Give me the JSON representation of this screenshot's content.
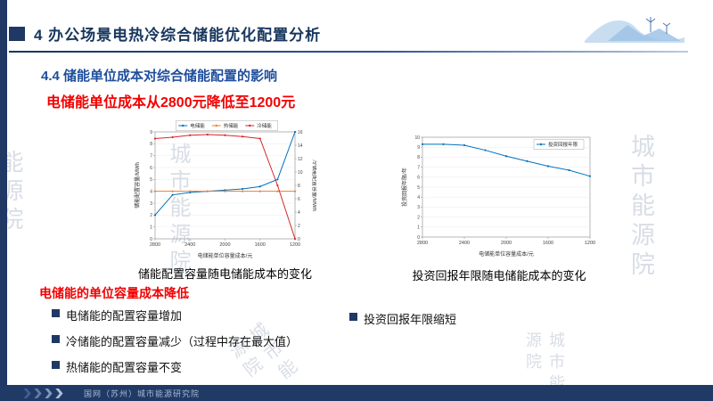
{
  "slide": {
    "title": "4 办公场景电热冷综合储能优化配置分析",
    "section_title": "4.4 储能单位成本对综合储能配置的影响",
    "highlight": "电储能单位成本从2800元降低至1200元"
  },
  "captions": {
    "left": "储能配置容量随电储能成本的变化",
    "right": "投资回报年限随电储能成本的变化"
  },
  "findings": {
    "heading": "电储能的单位容量成本降低",
    "left_bullets": [
      "电储能的配置容量增加",
      "冷储能的配置容量减少（过程中存在最大值）",
      "热储能的配置容量不变"
    ],
    "right_bullets": [
      "投资回报年限缩短"
    ]
  },
  "footer": {
    "org": "国网（苏州）城市能源研究院"
  },
  "watermark": {
    "text": "城市能源院",
    "short": "能源院"
  },
  "colors": {
    "primary_navy": "#1f3864",
    "accent_blue": "#2f5496",
    "highlight_red": "#f20000",
    "line_blue": "#0072bd",
    "line_orange": "#ed7d31",
    "line_red": "#d62728"
  },
  "chart_data": [
    {
      "type": "line",
      "name": "storage-capacity-vs-cost",
      "x": [
        2800,
        2600,
        2400,
        2200,
        2000,
        1800,
        1600,
        1400,
        1200
      ],
      "xticks": [
        2800,
        2400,
        2000,
        1600,
        1200
      ],
      "xlabel": "电储能单位容量成本/元",
      "ylabel_left": "储能配置容量/MWh",
      "ylabel_right": "冷储能配置容量/MWh",
      "ylim_left": [
        0,
        9
      ],
      "ytick_left": 1,
      "ylim_right": [
        0,
        16
      ],
      "ytick_right": 2,
      "legend": "top",
      "series": [
        {
          "name": "电储能",
          "axis": "left",
          "color": "#0072bd",
          "values": [
            2.0,
            3.7,
            3.9,
            4.0,
            4.1,
            4.2,
            4.4,
            5.0,
            9.0
          ]
        },
        {
          "name": "热储能",
          "axis": "left",
          "color": "#ed7d31",
          "values": [
            4.0,
            4.0,
            4.0,
            4.0,
            4.0,
            4.0,
            4.0,
            4.0,
            4.0
          ]
        },
        {
          "name": "冷储能",
          "axis": "right",
          "color": "#d62728",
          "values": [
            15.0,
            15.2,
            15.5,
            15.6,
            15.5,
            15.3,
            15.0,
            8.0,
            0.0
          ]
        }
      ]
    },
    {
      "type": "line",
      "name": "payback-vs-cost",
      "x": [
        2800,
        2600,
        2400,
        2200,
        2000,
        1800,
        1600,
        1400,
        1200
      ],
      "xticks": [
        2800,
        2400,
        2000,
        1600,
        1200
      ],
      "xlabel": "电储能单位容量成本/元",
      "ylabel_left": "投资回报年限/年",
      "ylim_left": [
        0,
        10
      ],
      "ytick_left": 1,
      "legend": "topright",
      "series": [
        {
          "name": "投资回报年限",
          "axis": "left",
          "color": "#0072bd",
          "values": [
            9.3,
            9.3,
            9.2,
            8.7,
            8.1,
            7.6,
            7.1,
            6.7,
            6.1
          ]
        }
      ]
    }
  ]
}
